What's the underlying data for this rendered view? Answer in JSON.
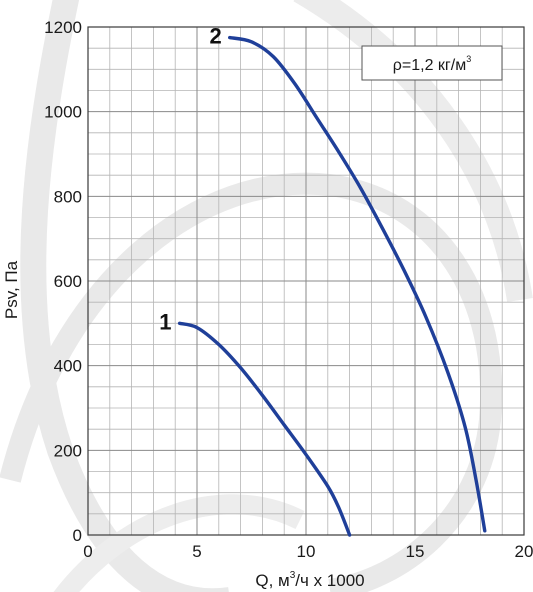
{
  "chart_data": {
    "type": "line",
    "title": "",
    "xlabel": "Q, м",
    "xlabel_sup": "3",
    "xlabel_suffix": "/ч х 1000",
    "ylabel": "Psv, Па",
    "xlim": [
      0,
      20
    ],
    "ylim": [
      0,
      1200
    ],
    "x_ticks": [
      0,
      5,
      10,
      15,
      20
    ],
    "x_tick_labels": [
      "0",
      "5",
      "10",
      "15",
      "20"
    ],
    "y_ticks": [
      0,
      200,
      400,
      600,
      800,
      1000,
      1200
    ],
    "y_tick_labels": [
      "0",
      "200",
      "400",
      "600",
      "800",
      "1000",
      "1200"
    ],
    "grid": true,
    "legend": {
      "text": "ρ=1,2 кг/м",
      "sup": "3",
      "placement": "top-right"
    },
    "series": [
      {
        "name": "1",
        "color": "#1f3f99",
        "points": [
          [
            4.2,
            500
          ],
          [
            5.0,
            490
          ],
          [
            6.0,
            450
          ],
          [
            7.0,
            395
          ],
          [
            8.0,
            330
          ],
          [
            9.0,
            260
          ],
          [
            10.0,
            190
          ],
          [
            11.0,
            115
          ],
          [
            11.5,
            65
          ],
          [
            12.0,
            0
          ]
        ]
      },
      {
        "name": "2",
        "color": "#1f3f99",
        "points": [
          [
            6.5,
            1175
          ],
          [
            7.5,
            1165
          ],
          [
            8.5,
            1130
          ],
          [
            9.5,
            1065
          ],
          [
            10.5,
            985
          ],
          [
            11.5,
            905
          ],
          [
            12.5,
            820
          ],
          [
            13.5,
            725
          ],
          [
            14.5,
            625
          ],
          [
            15.5,
            515
          ],
          [
            16.5,
            385
          ],
          [
            17.3,
            255
          ],
          [
            17.8,
            130
          ],
          [
            18.2,
            10
          ]
        ]
      }
    ]
  }
}
